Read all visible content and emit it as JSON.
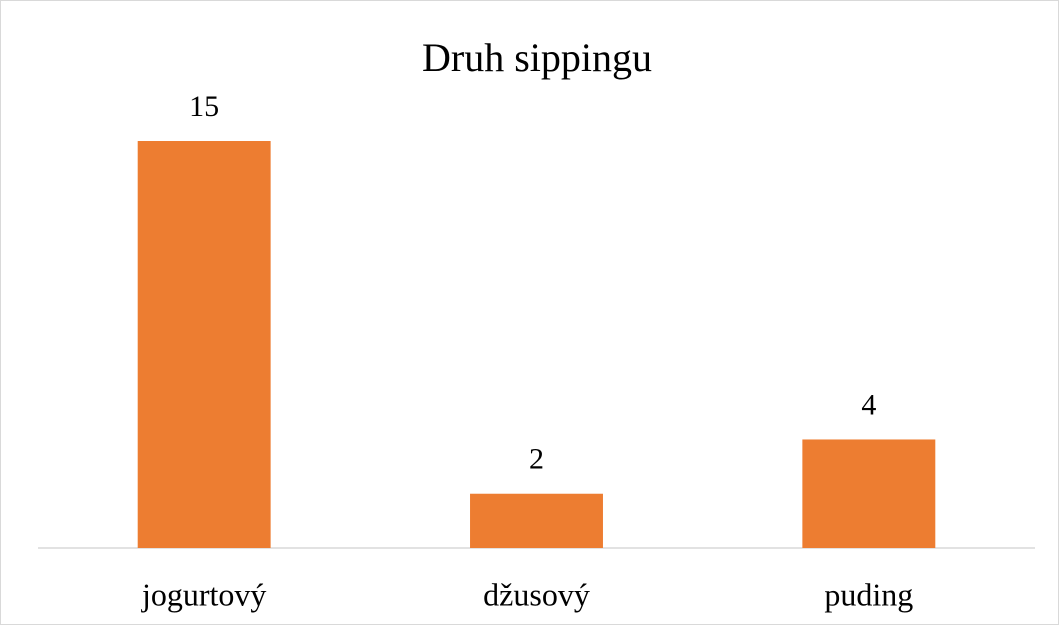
{
  "chart_data": {
    "type": "bar",
    "title": "Druh sippingu",
    "categories": [
      "jogurtový",
      "džusový",
      "puding"
    ],
    "values": [
      15,
      2,
      4
    ],
    "color": "#ed7d31"
  }
}
